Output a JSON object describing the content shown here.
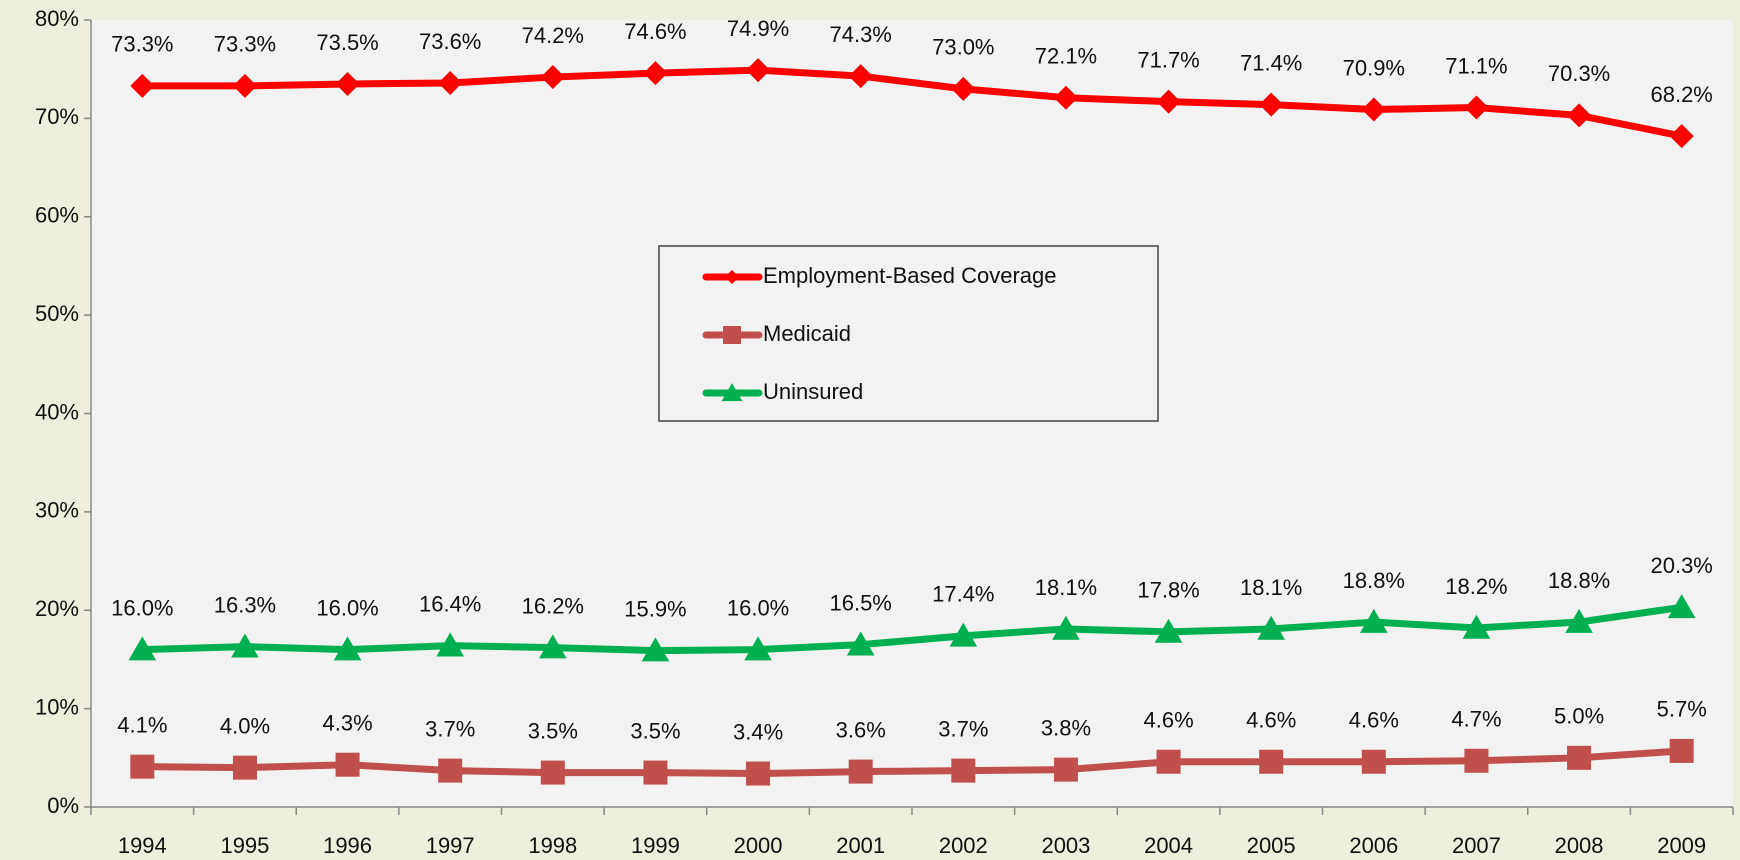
{
  "chart_data": {
    "type": "line",
    "categories": [
      "1994",
      "1995",
      "1996",
      "1997",
      "1998",
      "1999",
      "2000",
      "2001",
      "2002",
      "2003",
      "2004",
      "2005",
      "2006",
      "2007",
      "2008",
      "2009"
    ],
    "series": [
      {
        "name": "Employment-Based Coverage",
        "color": "#ff0000",
        "marker": "diamond",
        "values": [
          73.3,
          73.3,
          73.5,
          73.6,
          74.2,
          74.6,
          74.9,
          74.3,
          73.0,
          72.1,
          71.7,
          71.4,
          70.9,
          71.1,
          70.3,
          68.2
        ],
        "value_labels": [
          "73.3%",
          "73.3%",
          "73.5%",
          "73.6%",
          "74.2%",
          "74.6%",
          "74.9%",
          "74.3%",
          "73.0%",
          "72.1%",
          "71.7%",
          "71.4%",
          "70.9%",
          "71.1%",
          "70.3%",
          "68.2%"
        ]
      },
      {
        "name": "Medicaid",
        "color": "#c0504d",
        "marker": "square",
        "values": [
          4.1,
          4.0,
          4.3,
          3.7,
          3.5,
          3.5,
          3.4,
          3.6,
          3.7,
          3.8,
          4.6,
          4.6,
          4.6,
          4.7,
          5.0,
          5.7
        ],
        "value_labels": [
          "4.1%",
          "4.0%",
          "4.3%",
          "3.7%",
          "3.5%",
          "3.5%",
          "3.4%",
          "3.6%",
          "3.7%",
          "3.8%",
          "4.6%",
          "4.6%",
          "4.6%",
          "4.7%",
          "5.0%",
          "5.7%"
        ]
      },
      {
        "name": "Uninsured",
        "color": "#00b050",
        "marker": "triangle",
        "values": [
          16.0,
          16.3,
          16.0,
          16.4,
          16.2,
          15.9,
          16.0,
          16.5,
          17.4,
          18.1,
          17.8,
          18.1,
          18.8,
          18.2,
          18.8,
          20.3
        ],
        "value_labels": [
          "16.0%",
          "16.3%",
          "16.0%",
          "16.4%",
          "16.2%",
          "15.9%",
          "16.0%",
          "16.5%",
          "17.4%",
          "18.1%",
          "17.8%",
          "18.1%",
          "18.8%",
          "18.2%",
          "18.8%",
          "20.3%"
        ]
      }
    ],
    "ylim": [
      0,
      80
    ],
    "yticks": [
      {
        "value": 0,
        "label": "0%"
      },
      {
        "value": 10,
        "label": "10%"
      },
      {
        "value": 20,
        "label": "20%"
      },
      {
        "value": 30,
        "label": "30%"
      },
      {
        "value": 40,
        "label": "40%"
      },
      {
        "value": 50,
        "label": "50%"
      },
      {
        "value": 60,
        "label": "60%"
      },
      {
        "value": 70,
        "label": "70%"
      },
      {
        "value": 80,
        "label": "80%"
      }
    ],
    "grid": false,
    "legend": "center"
  }
}
